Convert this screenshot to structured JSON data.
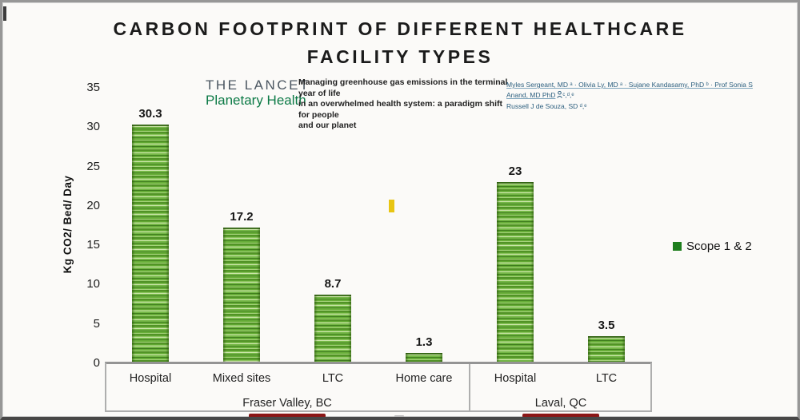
{
  "title": "CARBON FOOTPRINT OF DIFFERENT HEALTHCARE\nFACILITY TYPES",
  "lancet": {
    "name": "THE LANCET",
    "subname": "Planetary Health",
    "name_color": "#4b5661",
    "subname_color": "#0c7a46"
  },
  "paper": {
    "title": "Managing greenhouse gas emissions in the terminal year of life\nin an overwhelmed health system: a paradigm shift for people\nand our planet"
  },
  "authors": {
    "line1_before_icon": "Myles Sergeant, MD ᵃ · Olivia Ly, MD ᵃ · Sujane Kandasamy, PhD ᵇ · Prof Sonia S Anand, MD PhD",
    "line1_sups_after_icon": "ᶜ,ᵈ,ᵉ",
    "line2": "Russell J de Souza, SD ᵈ,ᵉ",
    "link_color": "#2b5e7e"
  },
  "chart_data": {
    "type": "bar",
    "title": "CARBON FOOTPRINT OF DIFFERENT HEALTHCARE FACILITY TYPES",
    "ylabel": "Kg CO2/ Bed/ Day",
    "xlabel": "",
    "ylim": [
      0,
      35
    ],
    "yticks": [
      0,
      5,
      10,
      15,
      20,
      25,
      30,
      35
    ],
    "grid": false,
    "categories": [
      "Hospital",
      "Mixed sites",
      "LTC",
      "Home care",
      "Hospital",
      "LTC"
    ],
    "values": [
      30.3,
      17.2,
      8.7,
      1.3,
      23,
      3.5
    ],
    "value_labels": [
      "30.3",
      "17.2",
      "8.7",
      "1.3",
      "23",
      "3.5"
    ],
    "group_of": [
      0,
      0,
      0,
      0,
      1,
      1
    ],
    "group_labels": [
      "Fraser Valley, BC",
      "Laval, QC"
    ],
    "series": [
      {
        "name": "Scope 1 & 2",
        "values": [
          30.3,
          17.2,
          8.7,
          1.3,
          23,
          3.5
        ]
      }
    ],
    "legend": {
      "label": "Scope 1 & 2",
      "color": "#1e7e1e",
      "position": "right"
    },
    "bar_color": "#62a933"
  },
  "colors": {
    "underline_marker": "#8b1616",
    "yellow_cursor": "#e8c512",
    "background": "#fbfaf8"
  }
}
